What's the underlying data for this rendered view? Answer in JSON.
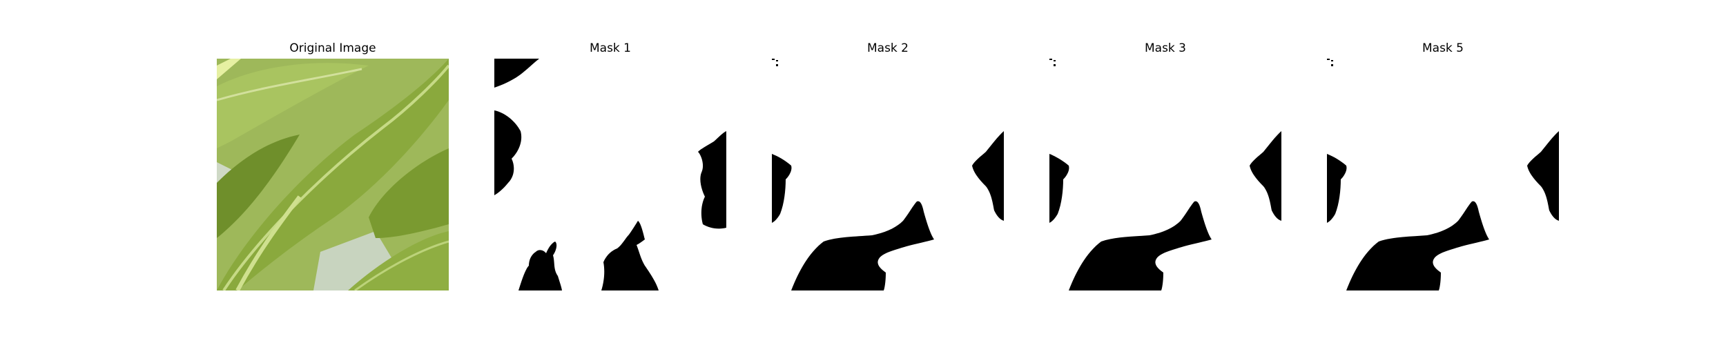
{
  "figure": {
    "panels": [
      {
        "title": "Original Image",
        "kind": "photo",
        "description_icon": "leaf-photo"
      },
      {
        "title": "Mask 1",
        "kind": "mask"
      },
      {
        "title": "Mask 2",
        "kind": "mask"
      },
      {
        "title": "Mask 3",
        "kind": "mask"
      },
      {
        "title": "Mask 5",
        "kind": "mask"
      }
    ],
    "colors": {
      "background": "#ffffff",
      "mask_fg": "#000000",
      "mask_bg": "#ffffff",
      "leaf_dark": "#5f7f22",
      "leaf_mid": "#86a63c",
      "leaf_light": "#b3cb6f",
      "leaf_pale": "#cfd9c6"
    }
  }
}
